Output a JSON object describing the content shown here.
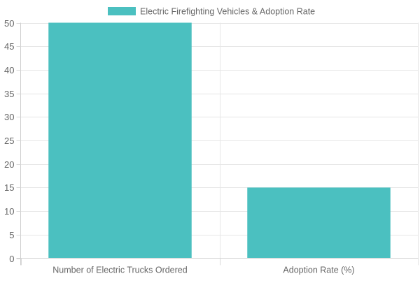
{
  "chart_data": {
    "type": "bar",
    "categories": [
      "Number of Electric Trucks Ordered",
      "Adoption Rate (%)"
    ],
    "series": [
      {
        "name": "Electric Firefighting Vehicles & Adoption Rate",
        "values": [
          50,
          15
        ],
        "color": "#4bc0c0"
      }
    ],
    "ylim": [
      0,
      50
    ],
    "yticks": [
      0,
      5,
      10,
      15,
      20,
      25,
      30,
      35,
      40,
      45,
      50
    ],
    "grid": true,
    "legend": "top-center"
  }
}
